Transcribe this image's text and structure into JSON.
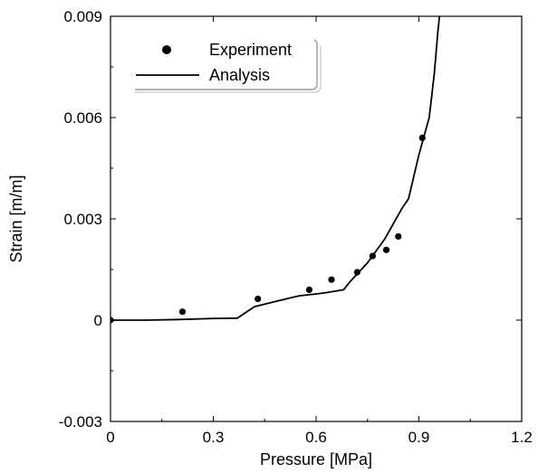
{
  "chart_data": {
    "type": "scatter",
    "title": "",
    "xlabel": "Pressure [MPa]",
    "ylabel": "Strain [m/m]",
    "xlim": [
      0,
      1.2
    ],
    "ylim": [
      -0.003,
      0.009
    ],
    "xticks": [
      0,
      0.3,
      0.6,
      0.9,
      1.2
    ],
    "xtick_labels": [
      "0",
      "0.3",
      "0.6",
      "0.9",
      "1.2"
    ],
    "yticks": [
      -0.003,
      0,
      0.003,
      0.006,
      0.009
    ],
    "ytick_labels": [
      "-0.003",
      "0",
      "0.003",
      "0.006",
      "0.009"
    ],
    "grid": false,
    "legend_position": "top-left",
    "series": [
      {
        "name": "Experiment",
        "kind": "scatter",
        "color": "#000000",
        "points": [
          [
            0.0,
            0.0
          ],
          [
            0.21,
            0.00025
          ],
          [
            0.43,
            0.00063
          ],
          [
            0.58,
            0.0009
          ],
          [
            0.645,
            0.0012
          ],
          [
            0.72,
            0.00142
          ],
          [
            0.765,
            0.0019
          ],
          [
            0.805,
            0.00208
          ],
          [
            0.84,
            0.00248
          ],
          [
            0.91,
            0.0054
          ]
        ]
      },
      {
        "name": "Analysis",
        "kind": "line",
        "color": "#000000",
        "points": [
          [
            0.0,
            0.0
          ],
          [
            0.1,
            0.0
          ],
          [
            0.2,
            2e-05
          ],
          [
            0.3,
            5e-05
          ],
          [
            0.37,
            6e-05
          ],
          [
            0.42,
            0.0004
          ],
          [
            0.5,
            0.0006
          ],
          [
            0.55,
            0.00072
          ],
          [
            0.62,
            0.0008
          ],
          [
            0.68,
            0.0009
          ],
          [
            0.7,
            0.00115
          ],
          [
            0.75,
            0.0017
          ],
          [
            0.8,
            0.0024
          ],
          [
            0.85,
            0.0033
          ],
          [
            0.87,
            0.0036
          ],
          [
            0.9,
            0.0049
          ],
          [
            0.93,
            0.006
          ],
          [
            0.945,
            0.0073
          ],
          [
            0.955,
            0.0085
          ],
          [
            0.965,
            0.0095
          ]
        ]
      }
    ]
  }
}
